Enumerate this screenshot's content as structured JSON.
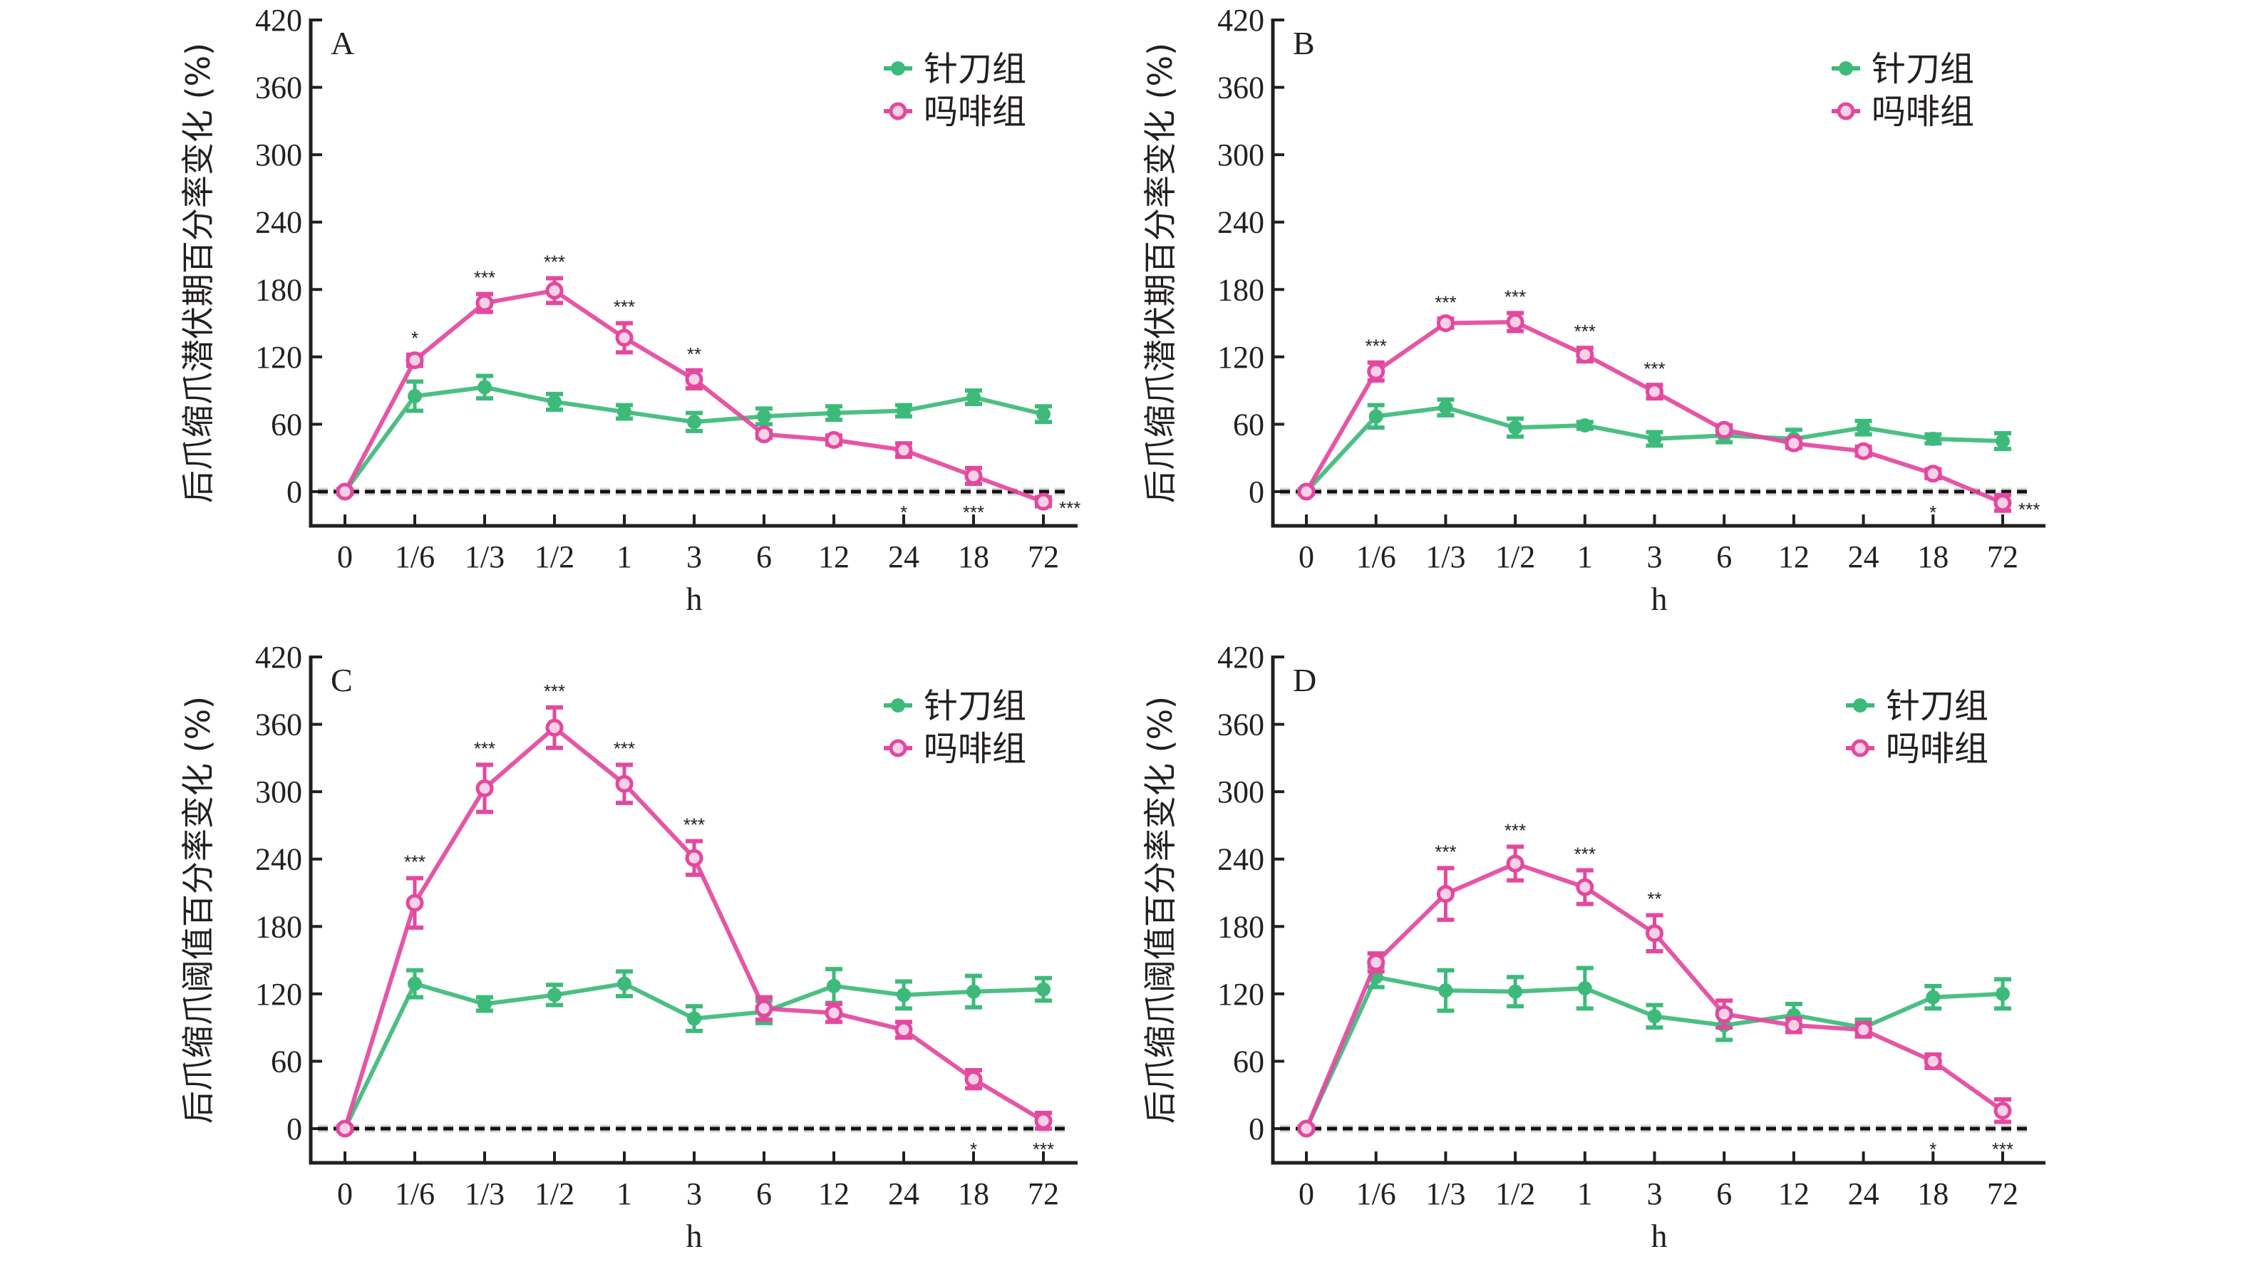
{
  "figure": {
    "x_tick_labels": [
      "0",
      "1/6",
      "1/3",
      "1/2",
      "1",
      "3",
      "6",
      "12",
      "24",
      "18",
      "72"
    ],
    "xlabel": "h",
    "legend": [
      {
        "name": "针刀组",
        "color": "#3dba7a",
        "marker": "filled-circle"
      },
      {
        "name": "吗啡组",
        "color": "#e3489f",
        "marker": "open-circle"
      }
    ]
  },
  "chart_data": [
    {
      "type": "line",
      "panel": "A",
      "ylabel": "后爪缩爪潜伏期百分率变化 (%)",
      "xlabel": "h",
      "ylim": [
        -20,
        420
      ],
      "y_ticks": [
        0,
        60,
        120,
        180,
        240,
        300,
        360,
        420
      ],
      "categories": [
        "0",
        "1/6",
        "1/3",
        "1/2",
        "1",
        "3",
        "6",
        "12",
        "24",
        "18",
        "72"
      ],
      "reference_line": 0,
      "legend_position": "top-right",
      "series": [
        {
          "name": "针刀组",
          "color": "#3dba7a",
          "values": [
            0,
            85,
            93,
            80,
            71,
            62,
            67,
            70,
            72,
            84,
            69
          ],
          "errors": [
            2,
            13,
            10,
            7,
            6,
            8,
            7,
            6,
            5,
            6,
            7
          ]
        },
        {
          "name": "吗啡组",
          "color": "#e3489f",
          "values": [
            0,
            117,
            168,
            179,
            137,
            100,
            51,
            46,
            37,
            14,
            -9
          ],
          "errors": [
            2,
            5,
            8,
            11,
            13,
            8,
            3,
            4,
            6,
            7,
            4
          ]
        }
      ],
      "annotations": [
        {
          "index": 1,
          "text": "*",
          "position": "above"
        },
        {
          "index": 2,
          "text": "***",
          "position": "above"
        },
        {
          "index": 3,
          "text": "***",
          "position": "above"
        },
        {
          "index": 4,
          "text": "***",
          "position": "above"
        },
        {
          "index": 5,
          "text": "**",
          "position": "above"
        },
        {
          "index": 8,
          "text": "*",
          "position": "below"
        },
        {
          "index": 9,
          "text": "***",
          "position": "below"
        },
        {
          "index": 10,
          "text": "***",
          "position": "right"
        }
      ]
    },
    {
      "type": "line",
      "panel": "B",
      "ylabel": "后爪缩爪潜伏期百分率变化 (%)",
      "xlabel": "h",
      "ylim": [
        -20,
        420
      ],
      "y_ticks": [
        0,
        60,
        120,
        180,
        240,
        300,
        360,
        420
      ],
      "categories": [
        "0",
        "1/6",
        "1/3",
        "1/2",
        "1",
        "3",
        "6",
        "12",
        "24",
        "18",
        "72"
      ],
      "reference_line": 0,
      "legend_position": "top-right",
      "series": [
        {
          "name": "针刀组",
          "color": "#3dba7a",
          "values": [
            0,
            67,
            75,
            57,
            59,
            47,
            50,
            47,
            57,
            47,
            45
          ],
          "errors": [
            2,
            10,
            7,
            8,
            3,
            6,
            6,
            8,
            6,
            4,
            7
          ]
        },
        {
          "name": "吗啡组",
          "color": "#e3489f",
          "values": [
            0,
            107,
            150,
            151,
            122,
            89,
            55,
            43,
            36,
            16,
            -10
          ],
          "errors": [
            2,
            8,
            4,
            8,
            6,
            6,
            4,
            4,
            4,
            4,
            7
          ]
        }
      ],
      "annotations": [
        {
          "index": 1,
          "text": "***",
          "position": "above"
        },
        {
          "index": 2,
          "text": "***",
          "position": "above"
        },
        {
          "index": 3,
          "text": "***",
          "position": "above"
        },
        {
          "index": 4,
          "text": "***",
          "position": "above"
        },
        {
          "index": 5,
          "text": "***",
          "position": "above"
        },
        {
          "index": 9,
          "text": "*",
          "position": "below"
        },
        {
          "index": 10,
          "text": "***",
          "position": "right"
        }
      ]
    },
    {
      "type": "line",
      "panel": "C",
      "ylabel": "后爪缩爪阈值百分率变化 (%)",
      "xlabel": "h",
      "ylim": [
        -20,
        420
      ],
      "y_ticks": [
        0,
        60,
        120,
        180,
        240,
        300,
        360,
        420
      ],
      "categories": [
        "0",
        "1/6",
        "1/3",
        "1/2",
        "1",
        "3",
        "6",
        "12",
        "24",
        "18",
        "72"
      ],
      "reference_line": 0,
      "legend_position": "top-right",
      "series": [
        {
          "name": "针刀组",
          "color": "#3dba7a",
          "values": [
            0,
            129,
            111,
            119,
            129,
            98,
            104,
            127,
            119,
            122,
            124
          ],
          "errors": [
            2,
            12,
            6,
            9,
            11,
            11,
            10,
            15,
            12,
            14,
            10
          ]
        },
        {
          "name": "吗啡组",
          "color": "#e3489f",
          "values": [
            0,
            201,
            303,
            357,
            307,
            241,
            107,
            103,
            88,
            44,
            7
          ],
          "errors": [
            2,
            22,
            21,
            18,
            17,
            15,
            10,
            8,
            7,
            8,
            7
          ]
        }
      ],
      "annotations": [
        {
          "index": 1,
          "text": "***",
          "position": "above"
        },
        {
          "index": 2,
          "text": "***",
          "position": "above"
        },
        {
          "index": 3,
          "text": "***",
          "position": "above"
        },
        {
          "index": 4,
          "text": "***",
          "position": "above"
        },
        {
          "index": 5,
          "text": "***",
          "position": "above"
        },
        {
          "index": 9,
          "text": "*",
          "position": "below"
        },
        {
          "index": 10,
          "text": "***",
          "position": "below"
        }
      ]
    },
    {
      "type": "line",
      "panel": "D",
      "ylabel": "后爪缩爪阈值百分率变化 (%)",
      "xlabel": "h",
      "ylim": [
        -20,
        420
      ],
      "y_ticks": [
        0,
        60,
        120,
        180,
        240,
        300,
        360,
        420
      ],
      "categories": [
        "0",
        "1/6",
        "1/3",
        "1/2",
        "1",
        "3",
        "6",
        "12",
        "24",
        "18",
        "72"
      ],
      "reference_line": 0,
      "legend_position": "top-right",
      "series": [
        {
          "name": "针刀组",
          "color": "#3dba7a",
          "values": [
            0,
            135,
            123,
            122,
            125,
            100,
            92,
            101,
            90,
            117,
            120
          ],
          "errors": [
            2,
            9,
            18,
            13,
            18,
            10,
            13,
            10,
            7,
            10,
            13
          ]
        },
        {
          "name": "吗啡组",
          "color": "#e3489f",
          "values": [
            0,
            148,
            209,
            236,
            215,
            174,
            102,
            92,
            88,
            60,
            16
          ],
          "errors": [
            2,
            8,
            23,
            15,
            15,
            16,
            12,
            6,
            6,
            6,
            10
          ]
        }
      ],
      "annotations": [
        {
          "index": 2,
          "text": "***",
          "position": "above"
        },
        {
          "index": 3,
          "text": "***",
          "position": "above"
        },
        {
          "index": 4,
          "text": "***",
          "position": "above"
        },
        {
          "index": 5,
          "text": "**",
          "position": "above"
        },
        {
          "index": 9,
          "text": "*",
          "position": "below"
        },
        {
          "index": 10,
          "text": "***",
          "position": "below"
        }
      ]
    }
  ]
}
